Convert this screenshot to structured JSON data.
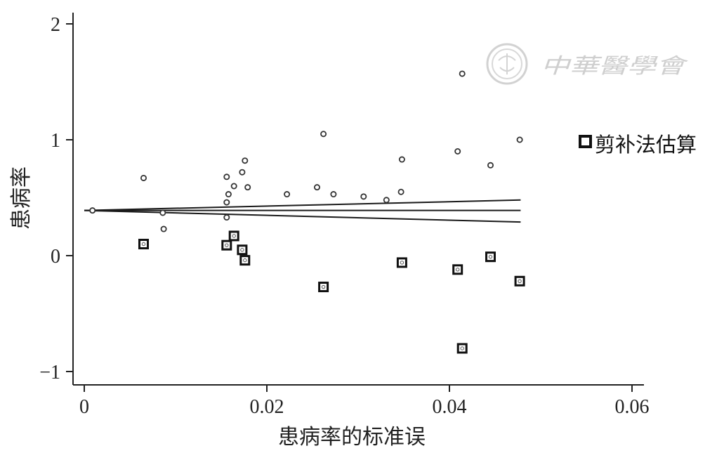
{
  "chart_data": {
    "type": "scatter",
    "xlabel": "患病率的标准误",
    "ylabel": "患病率",
    "xlim": [
      -0.002,
      0.061
    ],
    "ylim": [
      -1.1,
      2.1
    ],
    "x_ticks": [
      0,
      0.02,
      0.04,
      0.06
    ],
    "x_tick_labels": [
      "0",
      "0.02",
      "0.04",
      "0.06"
    ],
    "y_ticks": [
      -1,
      0,
      1,
      2
    ],
    "y_tick_labels": [
      "−1",
      "0",
      "1",
      "2"
    ],
    "legend": {
      "position": "right",
      "entries": [
        "剪补法估算"
      ]
    },
    "series": [
      {
        "marker": "circle",
        "points": [
          [
            0.0009,
            0.39
          ],
          [
            0.0065,
            0.67
          ],
          [
            0.0086,
            0.37
          ],
          [
            0.0087,
            0.23
          ],
          [
            0.0156,
            0.68
          ],
          [
            0.0158,
            0.53
          ],
          [
            0.0156,
            0.46
          ],
          [
            0.0156,
            0.33
          ],
          [
            0.0164,
            0.6
          ],
          [
            0.0173,
            0.72
          ],
          [
            0.0176,
            0.82
          ],
          [
            0.0179,
            0.59
          ],
          [
            0.0222,
            0.53
          ],
          [
            0.0255,
            0.59
          ],
          [
            0.0262,
            1.05
          ],
          [
            0.0273,
            0.53
          ],
          [
            0.0306,
            0.51
          ],
          [
            0.0331,
            0.48
          ],
          [
            0.0347,
            0.55
          ],
          [
            0.0348,
            0.83
          ],
          [
            0.0409,
            0.9
          ],
          [
            0.0414,
            1.57
          ],
          [
            0.0445,
            0.78
          ],
          [
            0.0477,
            1.0
          ]
        ]
      },
      {
        "name": "剪补法估算",
        "marker": "square",
        "points": [
          [
            0.0065,
            0.1
          ],
          [
            0.0156,
            0.09
          ],
          [
            0.0164,
            0.17
          ],
          [
            0.0173,
            0.05
          ],
          [
            0.0176,
            -0.04
          ],
          [
            0.0262,
            -0.27
          ],
          [
            0.0348,
            -0.06
          ],
          [
            0.0409,
            -0.12
          ],
          [
            0.0414,
            -0.8
          ],
          [
            0.0445,
            -0.01
          ],
          [
            0.0477,
            -0.22
          ]
        ]
      }
    ],
    "lines": [
      {
        "name": "pooled",
        "from": [
          0,
          0.39
        ],
        "to": [
          0.0478,
          0.39
        ]
      },
      {
        "name": "upper",
        "from": [
          0,
          0.39
        ],
        "to": [
          0.0478,
          0.48
        ]
      },
      {
        "name": "lower",
        "from": [
          0,
          0.39
        ],
        "to": [
          0.0478,
          0.29
        ]
      }
    ],
    "watermark": {
      "text": "中華醫學會",
      "color": "#cfcfcf"
    }
  }
}
